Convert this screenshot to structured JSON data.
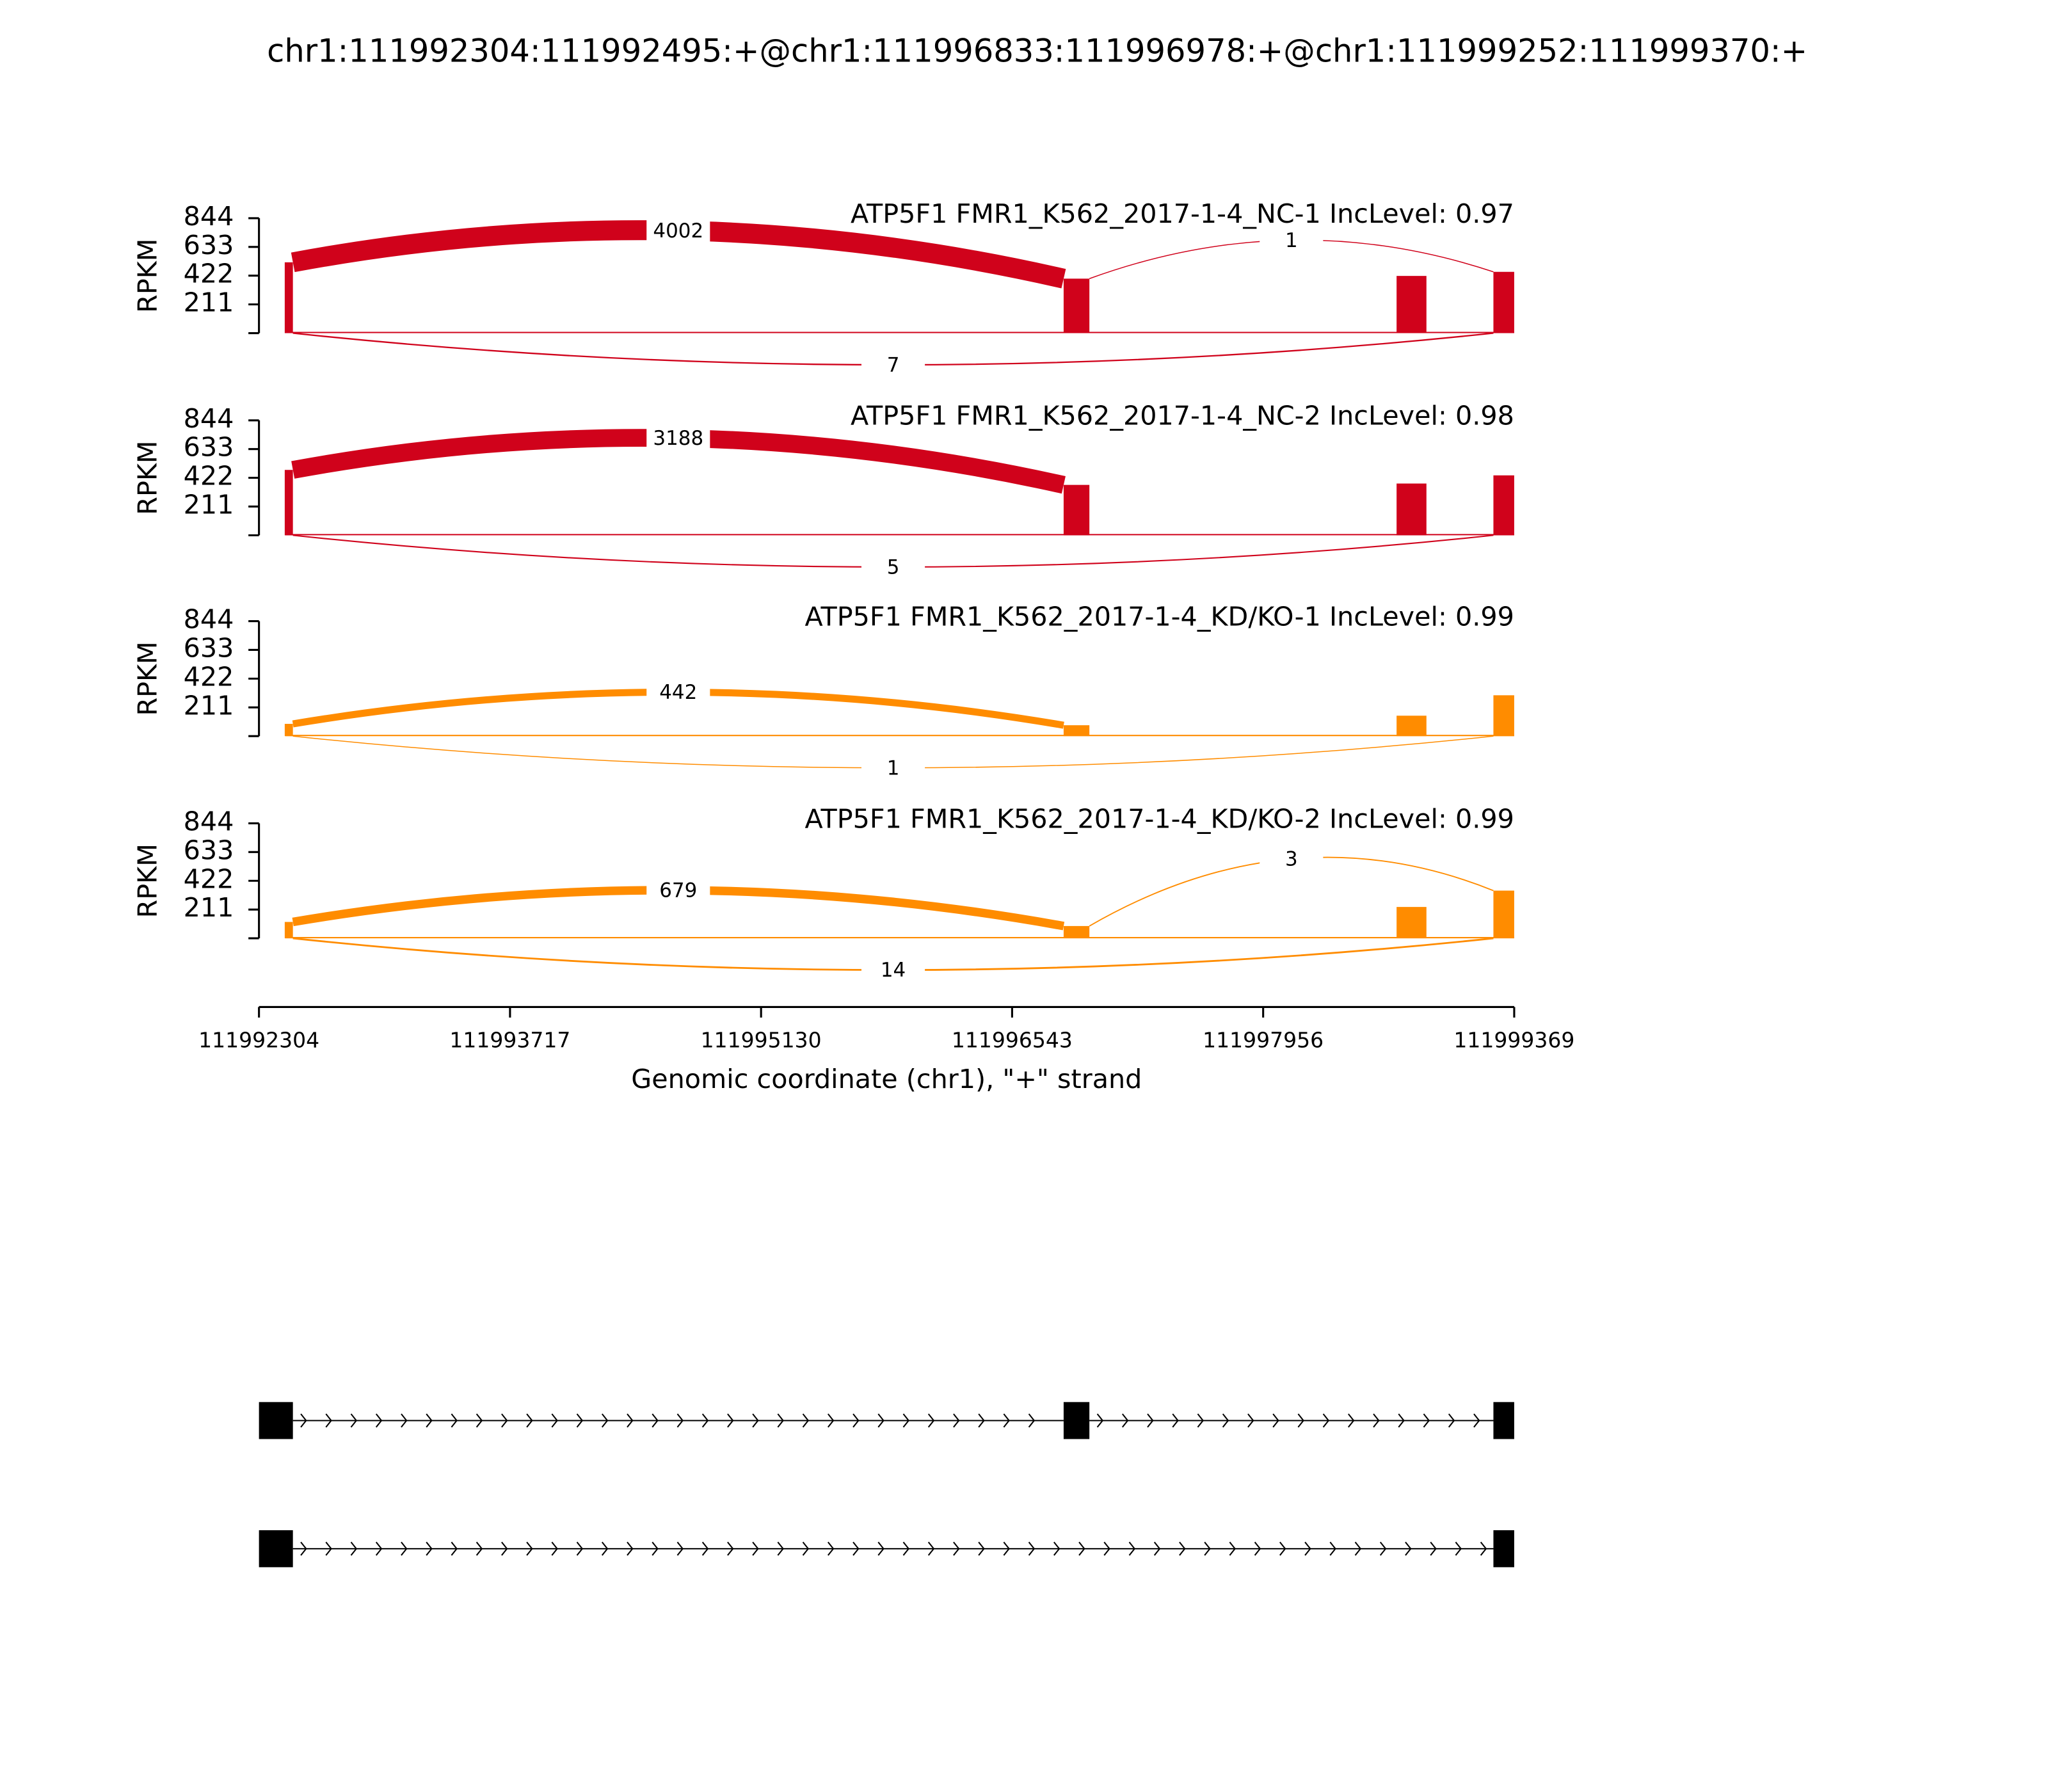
{
  "chart_data": {
    "type": "sashimi",
    "title": "chr1:111992304:111992495:+@chr1:111996833:111996978:+@chr1:111999252:111999370:+",
    "xlim": [
      111992304,
      111999369
    ],
    "xticks": [
      111992304,
      111993717,
      111995130,
      111996543,
      111997956,
      111999369
    ],
    "xlabel": "Genomic coordinate (chr1), \"+\" strand",
    "ylabel": "RPKM",
    "ylim": [
      0,
      844
    ],
    "yticks": [
      211,
      422,
      633,
      844
    ],
    "panels": [
      {
        "title": "ATP5F1 FMR1_K562_2017-1-4_NC-1 IncLevel: 0.97",
        "color": "#d0021b",
        "coverage": [
          {
            "start": 111992449,
            "end": 111992495,
            "value": 520
          },
          {
            "start": 111996833,
            "end": 111996978,
            "value": 400
          },
          {
            "start": 111998707,
            "end": 111998875,
            "value": 420
          },
          {
            "start": 111999252,
            "end": 111999369,
            "value": 450
          }
        ],
        "junctions": [
          {
            "start": 111992495,
            "end": 111996833,
            "count": 4002,
            "side": "above"
          },
          {
            "start": 111996978,
            "end": 111999252,
            "count": 1,
            "side": "above"
          },
          {
            "start": 111992495,
            "end": 111999252,
            "count": 7,
            "side": "below"
          }
        ]
      },
      {
        "title": "ATP5F1 FMR1_K562_2017-1-4_NC-2 IncLevel: 0.98",
        "color": "#d0021b",
        "coverage": [
          {
            "start": 111992449,
            "end": 111992495,
            "value": 480
          },
          {
            "start": 111996833,
            "end": 111996978,
            "value": 370
          },
          {
            "start": 111998707,
            "end": 111998875,
            "value": 380
          },
          {
            "start": 111999252,
            "end": 111999369,
            "value": 440
          }
        ],
        "junctions": [
          {
            "start": 111992495,
            "end": 111996833,
            "count": 3188,
            "side": "above"
          },
          {
            "start": 111992495,
            "end": 111999252,
            "count": 5,
            "side": "below"
          }
        ]
      },
      {
        "title": "ATP5F1 FMR1_K562_2017-1-4_KD/KO-1 IncLevel: 0.99",
        "color": "#ff8c00",
        "coverage": [
          {
            "start": 111992449,
            "end": 111992495,
            "value": 90
          },
          {
            "start": 111996833,
            "end": 111996978,
            "value": 80
          },
          {
            "start": 111998707,
            "end": 111998875,
            "value": 150
          },
          {
            "start": 111999252,
            "end": 111999369,
            "value": 300
          }
        ],
        "junctions": [
          {
            "start": 111992495,
            "end": 111996833,
            "count": 442,
            "side": "above"
          },
          {
            "start": 111992495,
            "end": 111999252,
            "count": 1,
            "side": "below"
          }
        ]
      },
      {
        "title": "ATP5F1 FMR1_K562_2017-1-4_KD/KO-2 IncLevel: 0.99",
        "color": "#ff8c00",
        "coverage": [
          {
            "start": 111992449,
            "end": 111992495,
            "value": 120
          },
          {
            "start": 111996833,
            "end": 111996978,
            "value": 90
          },
          {
            "start": 111998707,
            "end": 111998875,
            "value": 230
          },
          {
            "start": 111999252,
            "end": 111999369,
            "value": 350
          }
        ],
        "junctions": [
          {
            "start": 111992495,
            "end": 111996833,
            "count": 679,
            "side": "above"
          },
          {
            "start": 111996978,
            "end": 111999252,
            "count": 3,
            "side": "above"
          },
          {
            "start": 111992495,
            "end": 111999252,
            "count": 14,
            "side": "below"
          }
        ]
      }
    ],
    "transcripts": [
      {
        "exons": [
          [
            111992304,
            111992495
          ],
          [
            111996833,
            111996978
          ],
          [
            111999252,
            111999370
          ]
        ]
      },
      {
        "exons": [
          [
            111992304,
            111992495
          ],
          [
            111999252,
            111999370
          ]
        ]
      }
    ]
  }
}
